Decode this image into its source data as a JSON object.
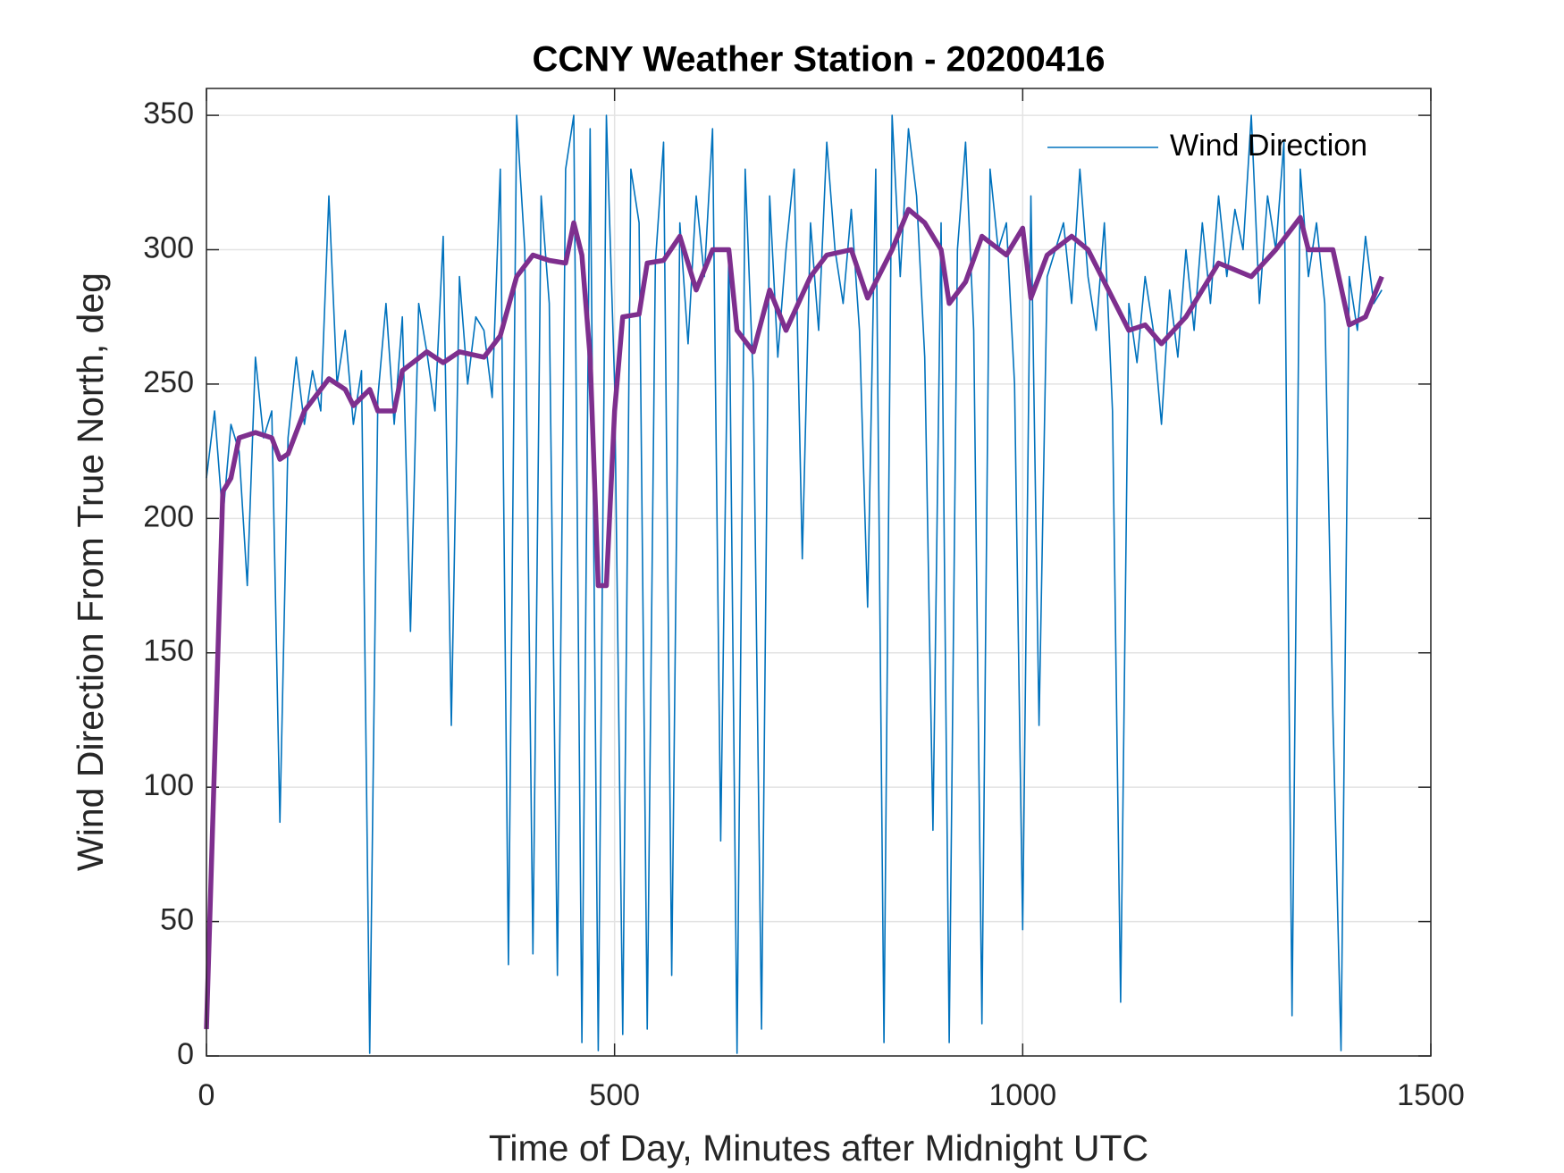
{
  "chart_data": {
    "type": "line",
    "title": "CCNY Weather Station - 20200416",
    "xlabel": "Time of Day, Minutes after Midnight UTC",
    "ylabel": "Wind Direction From True North, deg",
    "xlim": [
      0,
      1500
    ],
    "xticks": [
      0,
      500,
      1000,
      1500
    ],
    "ylim": [
      0,
      360
    ],
    "yticks": [
      0,
      50,
      100,
      150,
      200,
      250,
      300,
      350
    ],
    "grid": true,
    "legend": "northeast",
    "series": [
      {
        "name": "Wind Direction",
        "color": "#0072BD",
        "x": [
          0,
          10,
          20,
          30,
          40,
          50,
          60,
          70,
          80,
          90,
          100,
          110,
          120,
          130,
          140,
          150,
          160,
          170,
          180,
          190,
          200,
          210,
          220,
          230,
          240,
          250,
          260,
          270,
          280,
          290,
          300,
          310,
          320,
          330,
          340,
          350,
          360,
          370,
          380,
          390,
          400,
          410,
          420,
          430,
          440,
          450,
          460,
          470,
          480,
          490,
          500,
          510,
          520,
          530,
          540,
          550,
          560,
          570,
          580,
          590,
          600,
          610,
          620,
          630,
          640,
          650,
          660,
          670,
          680,
          690,
          700,
          710,
          720,
          730,
          740,
          750,
          760,
          770,
          780,
          790,
          800,
          810,
          820,
          830,
          840,
          850,
          860,
          870,
          880,
          890,
          900,
          910,
          920,
          930,
          940,
          950,
          960,
          970,
          980,
          990,
          1000,
          1010,
          1020,
          1030,
          1040,
          1050,
          1060,
          1070,
          1080,
          1090,
          1100,
          1110,
          1120,
          1130,
          1140,
          1150,
          1160,
          1170,
          1180,
          1190,
          1200,
          1210,
          1220,
          1230,
          1240,
          1250,
          1260,
          1270,
          1280,
          1290,
          1300,
          1310,
          1320,
          1330,
          1340,
          1350,
          1360,
          1370,
          1380,
          1390,
          1400,
          1410,
          1420,
          1430,
          1440
        ],
        "values": [
          215,
          240,
          200,
          235,
          225,
          175,
          260,
          230,
          240,
          87,
          230,
          260,
          235,
          255,
          240,
          320,
          250,
          270,
          235,
          255,
          1,
          245,
          280,
          235,
          275,
          158,
          280,
          262,
          240,
          305,
          123,
          290,
          250,
          275,
          270,
          245,
          330,
          34,
          350,
          300,
          38,
          320,
          280,
          30,
          330,
          350,
          5,
          345,
          2,
          350,
          250,
          8,
          330,
          310,
          10,
          295,
          340,
          30,
          310,
          265,
          320,
          290,
          345,
          80,
          300,
          1,
          330,
          250,
          10,
          320,
          260,
          300,
          330,
          185,
          310,
          270,
          340,
          300,
          280,
          315,
          270,
          167,
          330,
          5,
          350,
          290,
          345,
          320,
          260,
          84,
          310,
          5,
          300,
          340,
          270,
          12,
          330,
          300,
          310,
          250,
          47,
          320,
          123,
          290,
          300,
          310,
          280,
          330,
          290,
          270,
          310,
          240,
          20,
          280,
          258,
          290,
          270,
          235,
          285,
          260,
          300,
          270,
          310,
          280,
          320,
          290,
          315,
          300,
          350,
          280,
          320,
          300,
          340,
          15,
          330,
          290,
          310,
          280,
          127,
          2,
          290,
          270,
          305,
          280,
          285
        ]
      },
      {
        "color": "#7E2F8E",
        "x": [
          0,
          20,
          30,
          40,
          60,
          80,
          90,
          100,
          120,
          150,
          170,
          180,
          200,
          210,
          230,
          240,
          270,
          290,
          310,
          340,
          360,
          380,
          400,
          420,
          440,
          450,
          460,
          470,
          480,
          490,
          500,
          510,
          530,
          540,
          560,
          580,
          600,
          620,
          640,
          650,
          670,
          690,
          710,
          740,
          760,
          790,
          810,
          840,
          860,
          880,
          900,
          910,
          930,
          950,
          980,
          1000,
          1010,
          1030,
          1060,
          1080,
          1100,
          1130,
          1150,
          1170,
          1200,
          1240,
          1280,
          1310,
          1340,
          1350,
          1380,
          1400,
          1420,
          1440
        ],
        "values": [
          10,
          210,
          215,
          230,
          232,
          230,
          222,
          224,
          240,
          252,
          248,
          242,
          248,
          240,
          240,
          255,
          262,
          258,
          262,
          260,
          268,
          290,
          298,
          296,
          295,
          310,
          298,
          260,
          175,
          175,
          240,
          275,
          276,
          295,
          296,
          305,
          285,
          300,
          300,
          270,
          262,
          285,
          270,
          290,
          298,
          300,
          282,
          300,
          315,
          310,
          300,
          280,
          288,
          305,
          298,
          308,
          282,
          298,
          305,
          300,
          288,
          270,
          272,
          265,
          275,
          295,
          290,
          300,
          312,
          300,
          300,
          272,
          275,
          290
        ]
      }
    ]
  }
}
